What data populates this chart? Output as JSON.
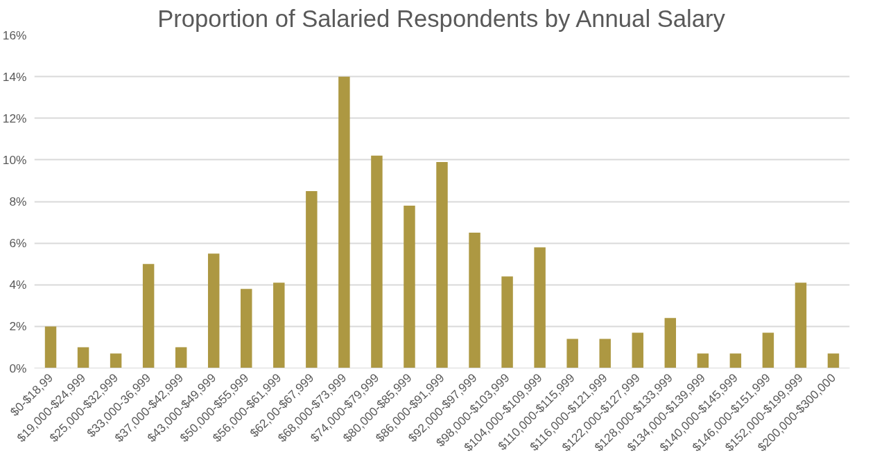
{
  "chart_data": {
    "type": "bar",
    "title": "Proportion of Salaried Respondents by Annual Salary",
    "categories": [
      "$0-$18,99",
      "$19,000-$24,999",
      "$25,000-$32,999",
      "$33,000-36,999",
      "$37,000-$42,999",
      "$43,000-$49,999",
      "$50,000-$55,999",
      "$56,000-$61,999",
      "$62,00-$67,999",
      "$68,000-$73,999",
      "$74,000-$79,999",
      "$80,000-$85,999",
      "$86,000-$91,999",
      "$92,000-$97,999",
      "$98,000-$103,999",
      "$104,000-$109,999",
      "$110,000-$115,999",
      "$116,000-$121,999",
      "$122,000-$127,999",
      "$128,000-$133,999",
      "$134,000-$139,999",
      "$140,000-$145,999",
      "$146,000-$151,999",
      "$152,000-$199,999",
      "$200,000-$300,000"
    ],
    "values": [
      2,
      1,
      0.7,
      5,
      1,
      5.5,
      3.8,
      4.1,
      8.5,
      14,
      10.2,
      7.8,
      9.9,
      6.5,
      4.4,
      5.8,
      1.4,
      1.4,
      1.7,
      2.4,
      0.7,
      0.7,
      1.7,
      4.1,
      0.7
    ],
    "color": "#ad9842",
    "ylim": [
      0,
      16
    ],
    "yticks": [
      {
        "value": 0,
        "label": "0%"
      },
      {
        "value": 2,
        "label": "2%"
      },
      {
        "value": 4,
        "label": "4%"
      },
      {
        "value": 6,
        "label": "6%"
      },
      {
        "value": 8,
        "label": "8%"
      },
      {
        "value": 10,
        "label": "10%"
      },
      {
        "value": 12,
        "label": "12%"
      },
      {
        "value": 14,
        "label": "14%"
      },
      {
        "value": 16,
        "label": "16%"
      }
    ],
    "grid": "y"
  }
}
